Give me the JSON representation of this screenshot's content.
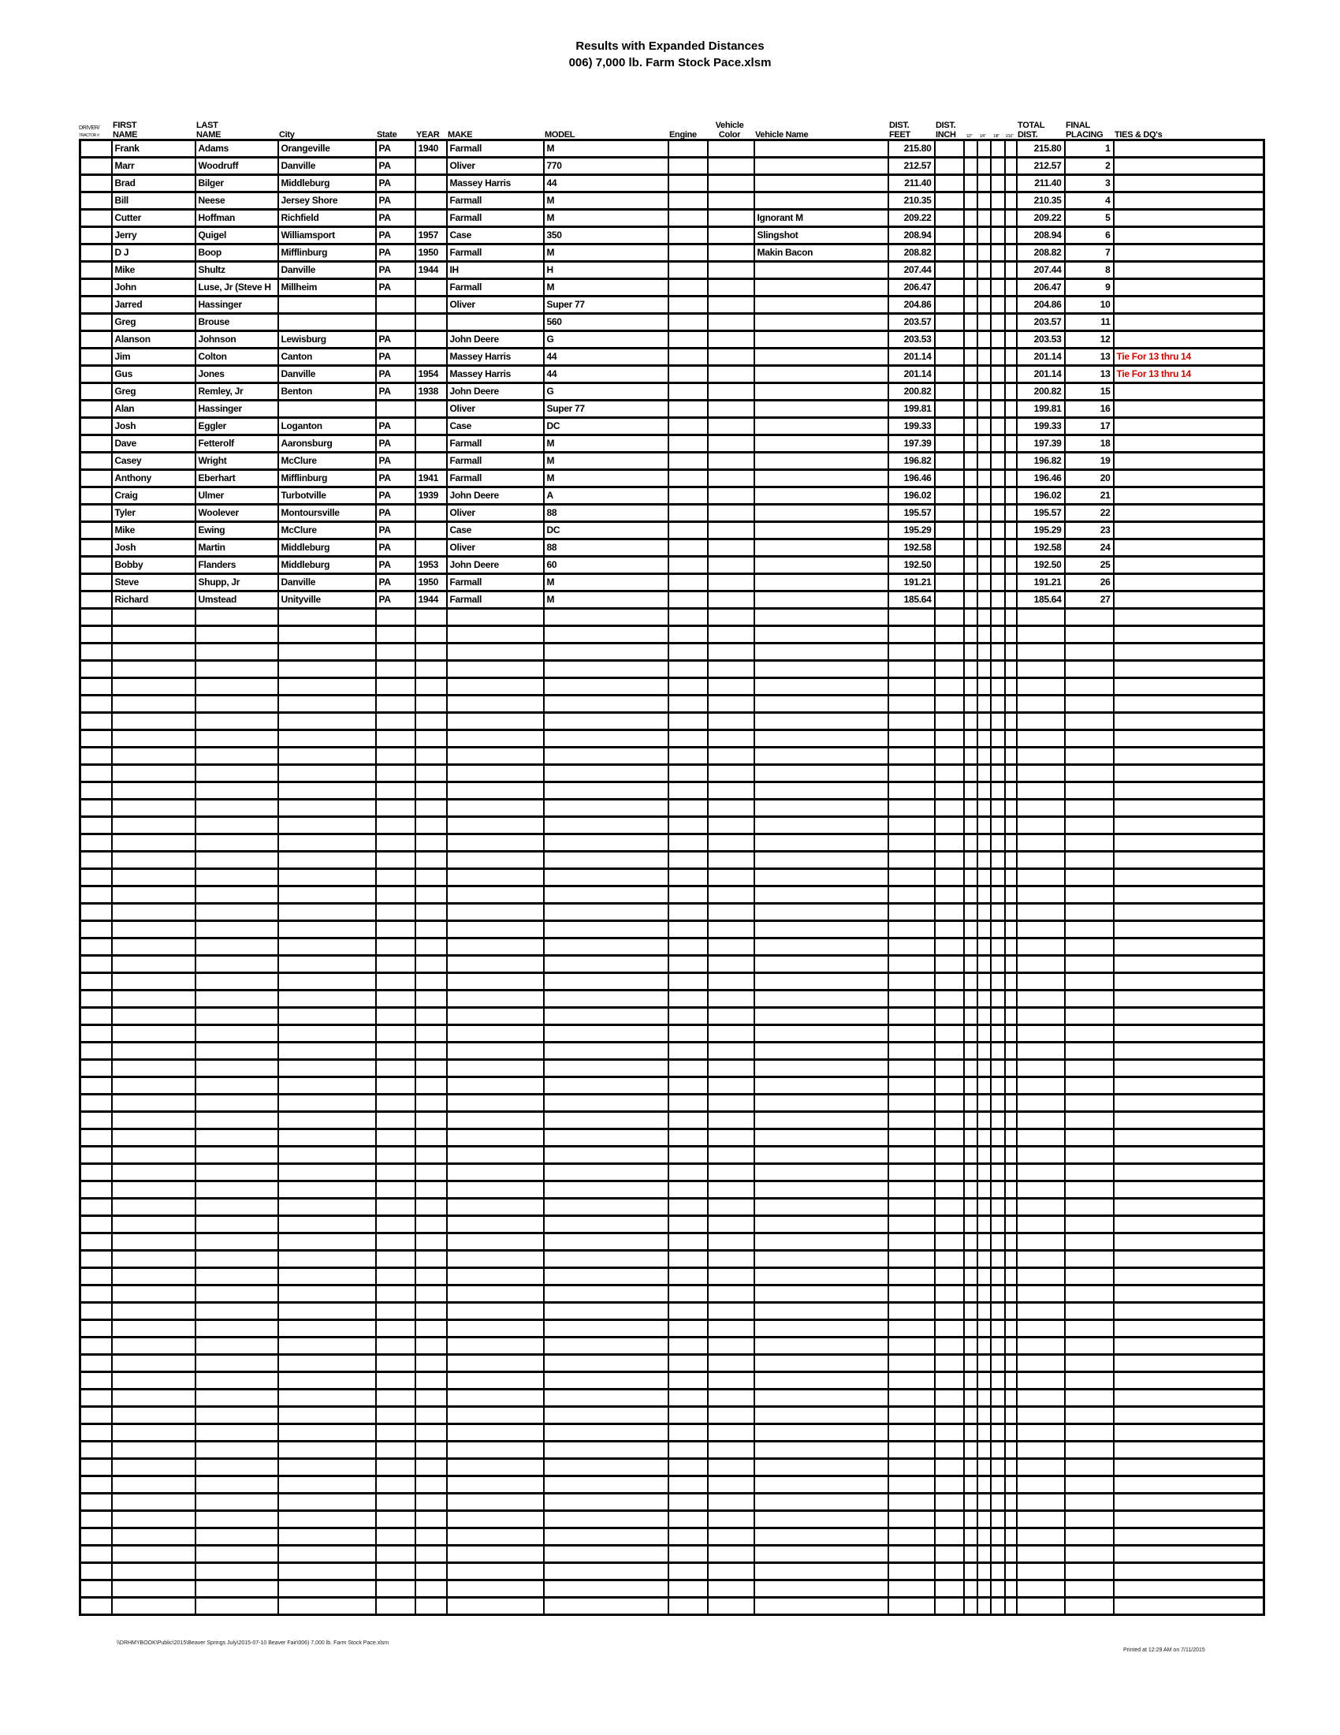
{
  "title": "Results with Expanded Distances",
  "subtitle": "006) 7,000 lb. Farm Stock Pace.xlsm",
  "headers": {
    "driver": "DRIVER/",
    "tractor": "TRACTOR #",
    "first_1": "FIRST",
    "first_2": "NAME",
    "last_1": "LAST",
    "last_2": "NAME",
    "city": "City",
    "state": "State",
    "year": "YEAR",
    "make": "MAKE",
    "model": "MODEL",
    "engine": "Engine",
    "color_1": "Vehicle",
    "color_2": "Color",
    "vehicle_name": "Vehicle Name",
    "feet_1": "DIST.",
    "feet_2": "FEET",
    "inch_1": "DIST.",
    "inch_2": "INCH",
    "half": "1/2\"",
    "quarter": "1/4\"",
    "eighth": "1/8\"",
    "sixteenth": "1/16\"",
    "total_1": "TOTAL",
    "total_2": "DIST.",
    "placing_1": "FINAL",
    "placing_2": "PLACING",
    "ties": "TIES & DQ's"
  },
  "colors": {
    "tie_text": "#d40000"
  },
  "rows": [
    {
      "first": "Frank",
      "last": "Adams",
      "city": "Orangeville",
      "state": "PA",
      "year": "1940",
      "make": "Farmall",
      "model": "M",
      "vehicle_name": "",
      "dist_feet": "215.80",
      "total": "215.80",
      "placing": "1",
      "ties": ""
    },
    {
      "first": "Marr",
      "last": "Woodruff",
      "city": "Danville",
      "state": "PA",
      "year": "",
      "make": "Oliver",
      "model": "770",
      "vehicle_name": "",
      "dist_feet": "212.57",
      "total": "212.57",
      "placing": "2",
      "ties": ""
    },
    {
      "first": "Brad",
      "last": "Bilger",
      "city": "Middleburg",
      "state": "PA",
      "year": "",
      "make": "Massey Harris",
      "model": "44",
      "vehicle_name": "",
      "dist_feet": "211.40",
      "total": "211.40",
      "placing": "3",
      "ties": ""
    },
    {
      "first": "Bill",
      "last": "Neese",
      "city": "Jersey Shore",
      "state": "PA",
      "year": "",
      "make": "Farmall",
      "model": "M",
      "vehicle_name": "",
      "dist_feet": "210.35",
      "total": "210.35",
      "placing": "4",
      "ties": ""
    },
    {
      "first": "Cutter",
      "last": "Hoffman",
      "city": "Richfield",
      "state": "PA",
      "year": "",
      "make": "Farmall",
      "model": "M",
      "vehicle_name": "Ignorant M",
      "dist_feet": "209.22",
      "total": "209.22",
      "placing": "5",
      "ties": ""
    },
    {
      "first": "Jerry",
      "last": "Quigel",
      "city": "Williamsport",
      "state": "PA",
      "year": "1957",
      "make": "Case",
      "model": "350",
      "vehicle_name": "Slingshot",
      "dist_feet": "208.94",
      "total": "208.94",
      "placing": "6",
      "ties": ""
    },
    {
      "first": "D J",
      "last": "Boop",
      "city": "Mifflinburg",
      "state": "PA",
      "year": "1950",
      "make": "Farmall",
      "model": "M",
      "vehicle_name": "Makin Bacon",
      "dist_feet": "208.82",
      "total": "208.82",
      "placing": "7",
      "ties": ""
    },
    {
      "first": "Mike",
      "last": "Shultz",
      "city": "Danville",
      "state": "PA",
      "year": "1944",
      "make": "IH",
      "model": "H",
      "vehicle_name": "",
      "dist_feet": "207.44",
      "total": "207.44",
      "placing": "8",
      "ties": ""
    },
    {
      "first": "John",
      "last": "Luse, Jr (Steve H",
      "city": "Millheim",
      "state": "PA",
      "year": "",
      "make": "Farmall",
      "model": "M",
      "vehicle_name": "",
      "dist_feet": "206.47",
      "total": "206.47",
      "placing": "9",
      "ties": ""
    },
    {
      "first": "Jarred",
      "last": "Hassinger",
      "city": "",
      "state": "",
      "year": "",
      "make": "Oliver",
      "model": "Super 77",
      "vehicle_name": "",
      "dist_feet": "204.86",
      "total": "204.86",
      "placing": "10",
      "ties": ""
    },
    {
      "first": "Greg",
      "last": "Brouse",
      "city": "",
      "state": "",
      "year": "",
      "make": "",
      "model": "560",
      "vehicle_name": "",
      "dist_feet": "203.57",
      "total": "203.57",
      "placing": "11",
      "ties": ""
    },
    {
      "first": "Alanson",
      "last": "Johnson",
      "city": "Lewisburg",
      "state": "PA",
      "year": "",
      "make": "John Deere",
      "model": "G",
      "vehicle_name": "",
      "dist_feet": "203.53",
      "total": "203.53",
      "placing": "12",
      "ties": ""
    },
    {
      "first": "Jim",
      "last": "Colton",
      "city": "Canton",
      "state": "PA",
      "year": "",
      "make": "Massey Harris",
      "model": "44",
      "vehicle_name": "",
      "dist_feet": "201.14",
      "total": "201.14",
      "placing": "13",
      "ties": "Tie For 13 thru 14"
    },
    {
      "first": "Gus",
      "last": "Jones",
      "city": "Danville",
      "state": "PA",
      "year": "1954",
      "make": "Massey Harris",
      "model": "44",
      "vehicle_name": "",
      "dist_feet": "201.14",
      "total": "201.14",
      "placing": "13",
      "ties": "Tie For 13 thru 14"
    },
    {
      "first": "Greg",
      "last": "Remley, Jr",
      "city": "Benton",
      "state": "PA",
      "year": "1938",
      "make": "John Deere",
      "model": "G",
      "vehicle_name": "",
      "dist_feet": "200.82",
      "total": "200.82",
      "placing": "15",
      "ties": ""
    },
    {
      "first": "Alan",
      "last": "Hassinger",
      "city": "",
      "state": "",
      "year": "",
      "make": "Oliver",
      "model": "Super 77",
      "vehicle_name": "",
      "dist_feet": "199.81",
      "total": "199.81",
      "placing": "16",
      "ties": ""
    },
    {
      "first": "Josh",
      "last": "Eggler",
      "city": "Loganton",
      "state": "PA",
      "year": "",
      "make": "Case",
      "model": "DC",
      "vehicle_name": "",
      "dist_feet": "199.33",
      "total": "199.33",
      "placing": "17",
      "ties": ""
    },
    {
      "first": "Dave",
      "last": "Fetterolf",
      "city": "Aaronsburg",
      "state": "PA",
      "year": "",
      "make": "Farmall",
      "model": "M",
      "vehicle_name": "",
      "dist_feet": "197.39",
      "total": "197.39",
      "placing": "18",
      "ties": ""
    },
    {
      "first": "Casey",
      "last": "Wright",
      "city": "McClure",
      "state": "PA",
      "year": "",
      "make": "Farmall",
      "model": "M",
      "vehicle_name": "",
      "dist_feet": "196.82",
      "total": "196.82",
      "placing": "19",
      "ties": ""
    },
    {
      "first": "Anthony",
      "last": "Eberhart",
      "city": "Mifflinburg",
      "state": "PA",
      "year": "1941",
      "make": "Farmall",
      "model": "M",
      "vehicle_name": "",
      "dist_feet": "196.46",
      "total": "196.46",
      "placing": "20",
      "ties": ""
    },
    {
      "first": "Craig",
      "last": "Ulmer",
      "city": "Turbotville",
      "state": "PA",
      "year": "1939",
      "make": "John Deere",
      "model": "A",
      "vehicle_name": "",
      "dist_feet": "196.02",
      "total": "196.02",
      "placing": "21",
      "ties": ""
    },
    {
      "first": "Tyler",
      "last": "Woolever",
      "city": "Montoursville",
      "state": "PA",
      "year": "",
      "make": "Oliver",
      "model": "88",
      "vehicle_name": "",
      "dist_feet": "195.57",
      "total": "195.57",
      "placing": "22",
      "ties": ""
    },
    {
      "first": "Mike",
      "last": "Ewing",
      "city": "McClure",
      "state": "PA",
      "year": "",
      "make": "Case",
      "model": "DC",
      "vehicle_name": "",
      "dist_feet": "195.29",
      "total": "195.29",
      "placing": "23",
      "ties": ""
    },
    {
      "first": "Josh",
      "last": "Martin",
      "city": "Middleburg",
      "state": "PA",
      "year": "",
      "make": "Oliver",
      "model": "88",
      "vehicle_name": "",
      "dist_feet": "192.58",
      "total": "192.58",
      "placing": "24",
      "ties": ""
    },
    {
      "first": "Bobby",
      "last": "Flanders",
      "city": "Middleburg",
      "state": "PA",
      "year": "1953",
      "make": "John Deere",
      "model": "60",
      "vehicle_name": "",
      "dist_feet": "192.50",
      "total": "192.50",
      "placing": "25",
      "ties": ""
    },
    {
      "first": "Steve",
      "last": "Shupp, Jr",
      "city": "Danville",
      "state": "PA",
      "year": "1950",
      "make": "Farmall",
      "model": "M",
      "vehicle_name": "",
      "dist_feet": "191.21",
      "total": "191.21",
      "placing": "26",
      "ties": ""
    },
    {
      "first": "Richard",
      "last": "Umstead",
      "city": "Unityville",
      "state": "PA",
      "year": "1944",
      "make": "Farmall",
      "model": "M",
      "vehicle_name": "",
      "dist_feet": "185.64",
      "total": "185.64",
      "placing": "27",
      "ties": ""
    }
  ],
  "footer": {
    "file_path": "\\\\DRHMYBOOK\\Public\\2015\\Beaver Springs July\\2015-07-10 Beaver Fair\\006) 7,000 lb. Farm Stock Pace.xlsm",
    "printed": "Printed at 12:29 AM on 7/11/2015"
  }
}
